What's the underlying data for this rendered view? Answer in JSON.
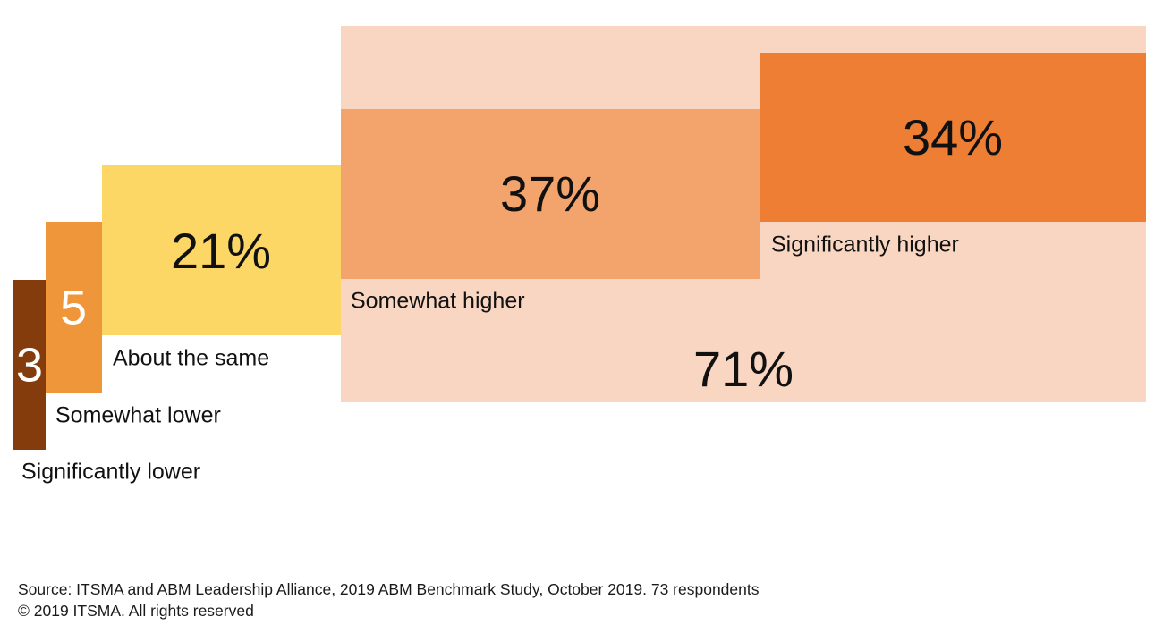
{
  "chart_data": {
    "type": "bar",
    "subtype": "stepped-block",
    "categories": [
      "Significantly lower",
      "Somewhat lower",
      "About the same",
      "Somewhat higher",
      "Significantly higher"
    ],
    "values": [
      3,
      5,
      21,
      37,
      34
    ],
    "value_labels": [
      "3",
      "5",
      "21%",
      "37%",
      "34%"
    ],
    "colors": [
      "#843C0C",
      "#F0963A",
      "#FDD766",
      "#F2A46C",
      "#EE7E33"
    ],
    "group_total": {
      "label": "71%",
      "value": 71,
      "members": [
        "Somewhat higher",
        "Significantly higher"
      ],
      "color": "#F9D6C1"
    }
  },
  "footer": {
    "source": "Source: ITSMA and ABM Leadership Alliance, 2019 ABM Benchmark Study, October 2019. 73 respondents",
    "copyright": "© 2019 ITSMA. All rights reserved"
  }
}
